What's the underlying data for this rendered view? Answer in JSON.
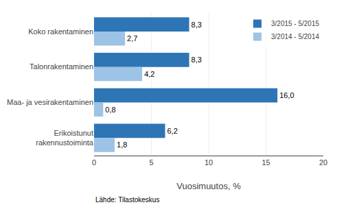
{
  "chart_data": {
    "type": "bar",
    "orientation": "horizontal",
    "categories": [
      "Koko rakentaminen",
      "Talonrakentaminen",
      "Maa- ja vesirakentaminen",
      "Erikoistunut\nrakennustoiminta"
    ],
    "series": [
      {
        "name": "3/2015 - 5/2015",
        "color": "#2E75B6",
        "values": [
          8.3,
          8.3,
          16.0,
          6.2
        ],
        "value_labels": [
          "8,3",
          "8,3",
          "16,0",
          "6,2"
        ]
      },
      {
        "name": "3/2014 - 5/2014",
        "color": "#9DC3E6",
        "values": [
          2.7,
          4.2,
          0.8,
          1.8
        ],
        "value_labels": [
          "2,7",
          "4,2",
          "0,8",
          "1,8"
        ]
      }
    ],
    "xlabel": "Vuosimuutos, %",
    "xlim": [
      0,
      20
    ],
    "xticks": [
      0,
      5,
      10,
      15,
      20
    ],
    "grid": true,
    "legend": "upper right",
    "data_labels": true,
    "annotations": [
      "Lähde: Tilastokeskus"
    ]
  }
}
